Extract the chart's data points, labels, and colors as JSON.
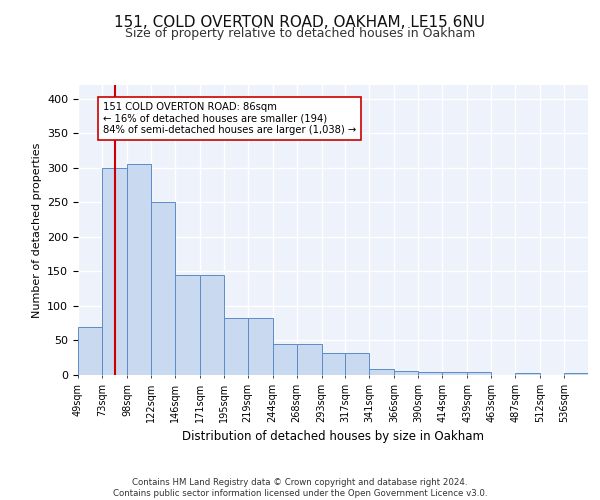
{
  "title1": "151, COLD OVERTON ROAD, OAKHAM, LE15 6NU",
  "title2": "Size of property relative to detached houses in Oakham",
  "xlabel": "Distribution of detached houses by size in Oakham",
  "ylabel": "Number of detached properties",
  "categories": [
    "49sqm",
    "73sqm",
    "98sqm",
    "122sqm",
    "146sqm",
    "171sqm",
    "195sqm",
    "219sqm",
    "244sqm",
    "268sqm",
    "293sqm",
    "317sqm",
    "341sqm",
    "366sqm",
    "390sqm",
    "414sqm",
    "439sqm",
    "463sqm",
    "487sqm",
    "512sqm",
    "536sqm"
  ],
  "heights": [
    70,
    300,
    305,
    250,
    145,
    145,
    82,
    82,
    45,
    45,
    32,
    32,
    9,
    6,
    5,
    5,
    5,
    0,
    3,
    0,
    3
  ],
  "bar_color": "#c8d9f0",
  "bar_edge_color": "#5b8cc8",
  "vline_x": 86,
  "vline_color": "#cc0000",
  "annotation_text": "151 COLD OVERTON ROAD: 86sqm\n← 16% of detached houses are smaller (194)\n84% of semi-detached houses are larger (1,038) →",
  "ylim": [
    0,
    420
  ],
  "yticks": [
    0,
    50,
    100,
    150,
    200,
    250,
    300,
    350,
    400
  ],
  "footer1": "Contains HM Land Registry data © Crown copyright and database right 2024.",
  "footer2": "Contains public sector information licensed under the Open Government Licence v3.0.",
  "bg_color": "#eef2fb",
  "grid_color": "#ffffff",
  "bin_edges": [
    49,
    73,
    98,
    122,
    146,
    171,
    195,
    219,
    244,
    268,
    293,
    317,
    341,
    366,
    390,
    414,
    439,
    463,
    487,
    512,
    536,
    560
  ]
}
